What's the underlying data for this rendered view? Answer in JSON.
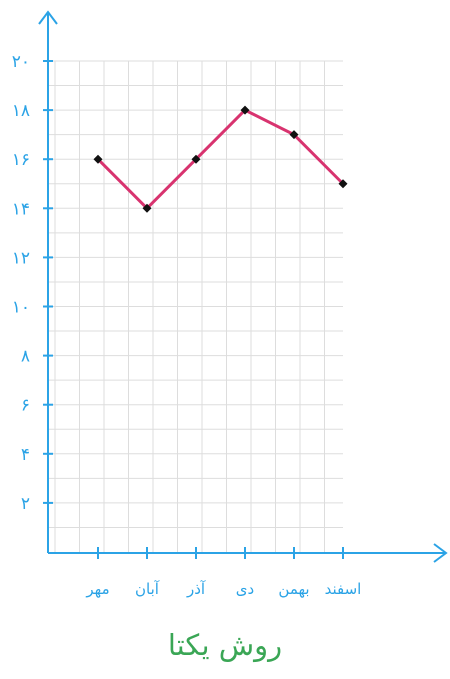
{
  "chart_data": {
    "type": "line",
    "title": "",
    "xlabel": "",
    "ylabel": "",
    "categories": [
      "مهر",
      "آبان",
      "آذر",
      "دی",
      "بهمن",
      "اسفند"
    ],
    "y_tick_labels": [
      "۲",
      "۴",
      "۶",
      "۸",
      "۱۰",
      "۱۲",
      "۱۴",
      "۱۶",
      "۱۸",
      "۲۰"
    ],
    "y_ticks": [
      2,
      4,
      6,
      8,
      10,
      12,
      14,
      16,
      18,
      20
    ],
    "ylim": [
      0,
      20
    ],
    "grid": true,
    "series": [
      {
        "values": [
          16,
          14,
          16,
          18,
          17,
          15
        ]
      }
    ],
    "colors": {
      "axis": "#2ba3e6",
      "line": "#d8336f",
      "grid": "#dddddd",
      "marker": "#111111"
    }
  },
  "caption": "روش یکتا",
  "caption_color": "#3aa655"
}
